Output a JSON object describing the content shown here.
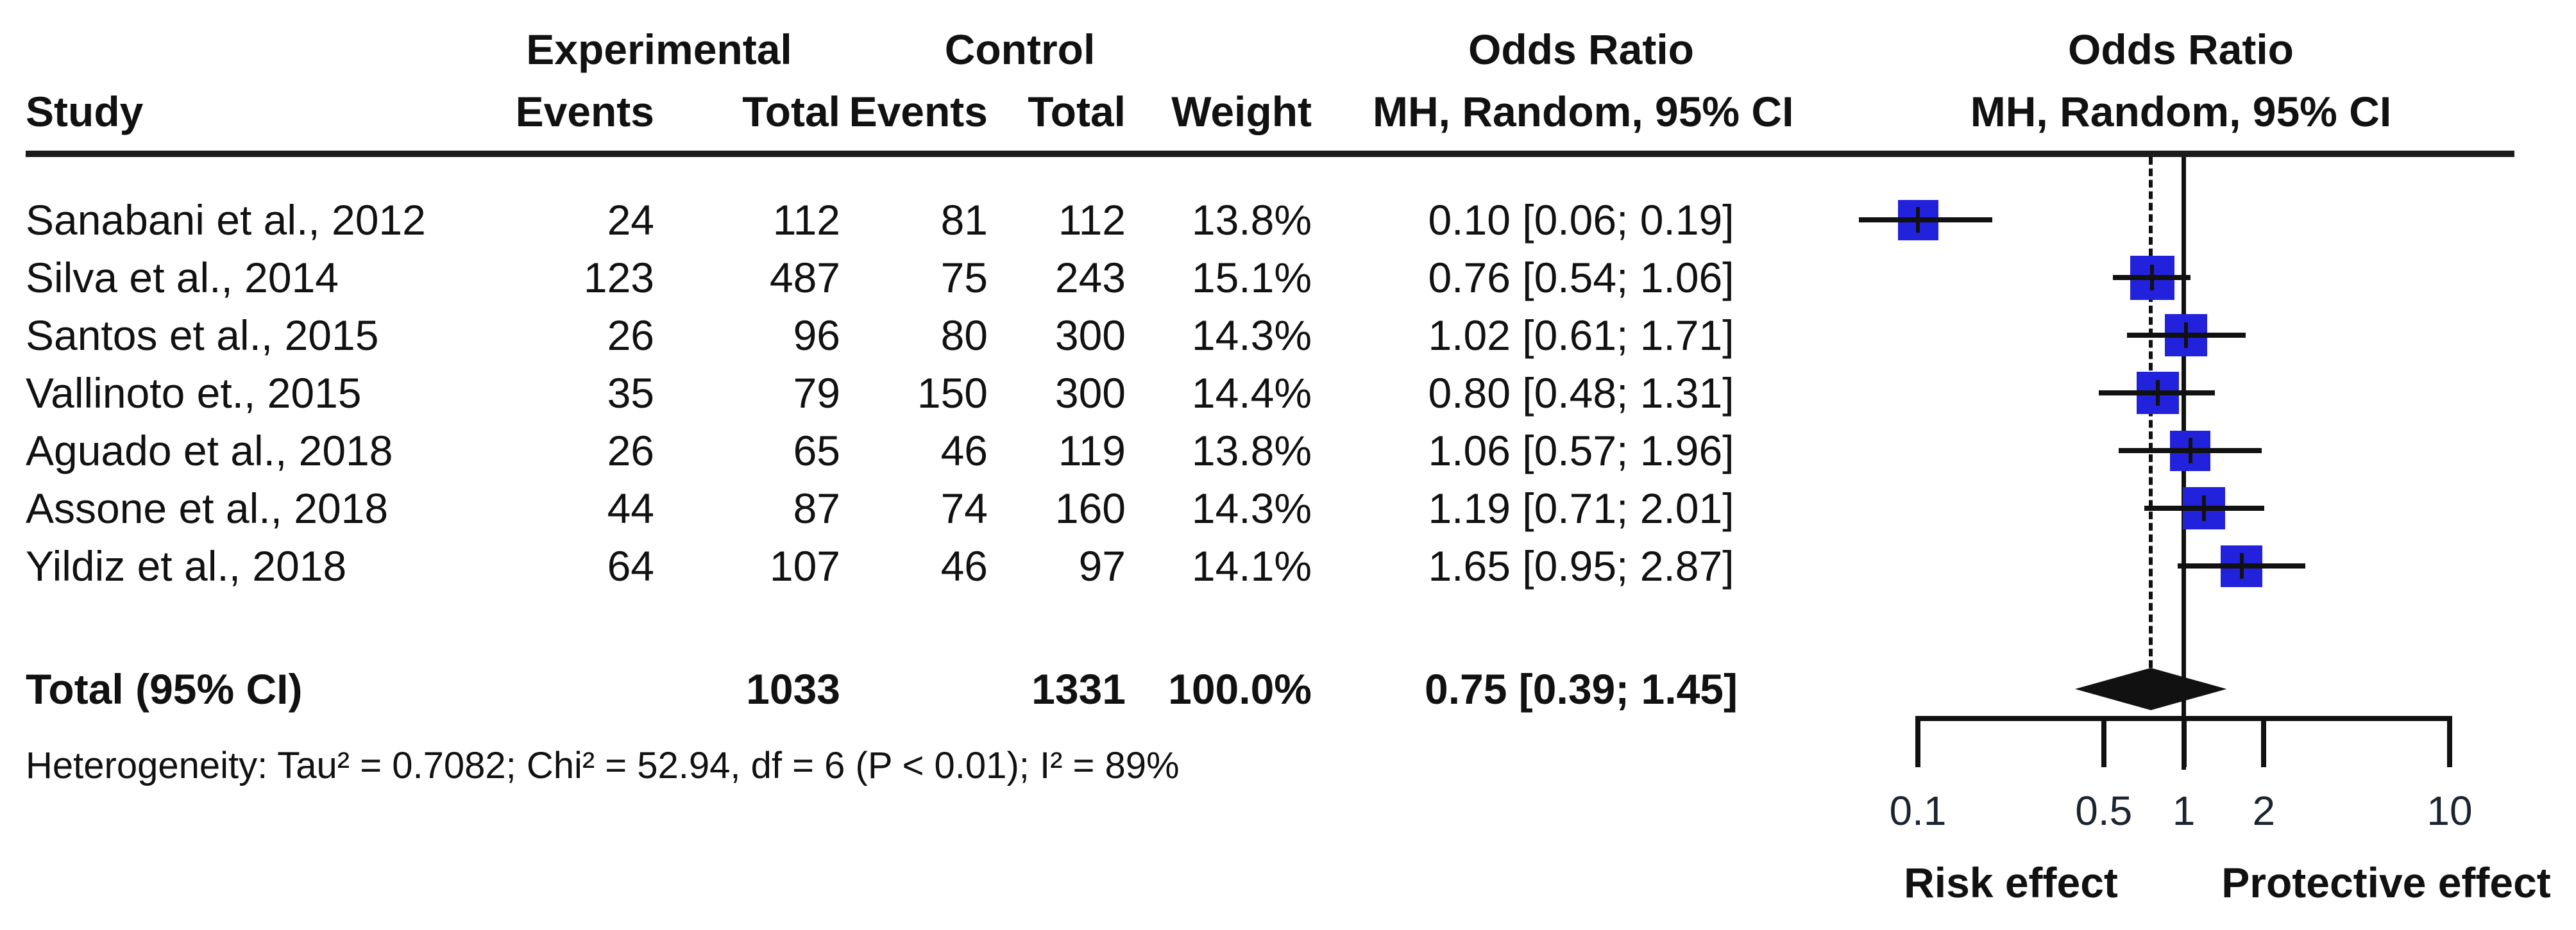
{
  "headers": {
    "study": "Study",
    "experimental": "Experimental",
    "control": "Control",
    "odds_ratio_text_col": "Odds Ratio",
    "odds_ratio_plot_col": "Odds Ratio",
    "exp_events": "Events",
    "exp_total": "Total",
    "ctl_events": "Events",
    "ctl_total": "Total",
    "weight": "Weight",
    "mh_random_text_col": "MH, Random, 95% CI",
    "mh_random_plot_col": "MH, Random, 95% CI"
  },
  "studies": [
    {
      "name": "Sanabani et al., 2012",
      "exp_events": "24",
      "exp_total": "112",
      "ctl_events": "81",
      "ctl_total": "112",
      "weight": "13.8%",
      "or_ci": "0.10 [0.06; 0.19]"
    },
    {
      "name": "Silva et al., 2014",
      "exp_events": "123",
      "exp_total": "487",
      "ctl_events": "75",
      "ctl_total": "243",
      "weight": "15.1%",
      "or_ci": "0.76 [0.54; 1.06]"
    },
    {
      "name": "Santos et al., 2015",
      "exp_events": "26",
      "exp_total": "96",
      "ctl_events": "80",
      "ctl_total": "300",
      "weight": "14.3%",
      "or_ci": "1.02 [0.61; 1.71]"
    },
    {
      "name": "Vallinoto et., 2015",
      "exp_events": "35",
      "exp_total": "79",
      "ctl_events": "150",
      "ctl_total": "300",
      "weight": "14.4%",
      "or_ci": "0.80 [0.48; 1.31]"
    },
    {
      "name": "Aguado et al., 2018",
      "exp_events": "26",
      "exp_total": "65",
      "ctl_events": "46",
      "ctl_total": "119",
      "weight": "13.8%",
      "or_ci": "1.06 [0.57; 1.96]"
    },
    {
      "name": "Assone et al., 2018",
      "exp_events": "44",
      "exp_total": "87",
      "ctl_events": "74",
      "ctl_total": "160",
      "weight": "14.3%",
      "or_ci": "1.19 [0.71; 2.01]"
    },
    {
      "name": "Yildiz et al., 2018",
      "exp_events": "64",
      "exp_total": "107",
      "ctl_events": "46",
      "ctl_total": "97",
      "weight": "14.1%",
      "or_ci": "1.65 [0.95; 2.87]"
    }
  ],
  "total_row": {
    "label": "Total (95% CI)",
    "exp_total": "1033",
    "ctl_total": "1331",
    "weight": "100.0%",
    "or_ci": "0.75 [0.39; 1.45]"
  },
  "heterogeneity": "Heterogeneity: Tau² = 0.7082; Chi² = 52.94, df = 6 (P < 0.01); I² = 89%",
  "chart_data": {
    "type": "forest",
    "x_scale": "log10",
    "axis_range": [
      0.1,
      10
    ],
    "x_ticks": [
      0.1,
      0.5,
      1,
      2,
      10
    ],
    "x_tick_labels": [
      "0.1",
      "0.5",
      "1",
      "2",
      "10"
    ],
    "null_line": 1,
    "pooled_line": 0.75,
    "xlabel_left": "Risk effect",
    "xlabel_right": "Protective effect",
    "legend": "MH, Random, 95% CI",
    "series": [
      {
        "name": "Sanabani et al., 2012",
        "or": 0.1,
        "low": 0.06,
        "high": 0.19,
        "weight_pct": 13.8
      },
      {
        "name": "Silva et al., 2014",
        "or": 0.76,
        "low": 0.54,
        "high": 1.06,
        "weight_pct": 15.1
      },
      {
        "name": "Santos et al., 2015",
        "or": 1.02,
        "low": 0.61,
        "high": 1.71,
        "weight_pct": 14.3
      },
      {
        "name": "Vallinoto et., 2015",
        "or": 0.8,
        "low": 0.48,
        "high": 1.31,
        "weight_pct": 14.4
      },
      {
        "name": "Aguado et al., 2018",
        "or": 1.06,
        "low": 0.57,
        "high": 1.96,
        "weight_pct": 13.8
      },
      {
        "name": "Assone et al., 2018",
        "or": 1.19,
        "low": 0.71,
        "high": 2.01,
        "weight_pct": 14.3
      },
      {
        "name": "Yildiz et al., 2018",
        "or": 1.65,
        "low": 0.95,
        "high": 2.87,
        "weight_pct": 14.1
      }
    ],
    "pooled": {
      "or": 0.75,
      "low": 0.39,
      "high": 1.45
    },
    "square_color": "#2222dd",
    "line_color": "#111111",
    "diamond_color": "#111111"
  }
}
